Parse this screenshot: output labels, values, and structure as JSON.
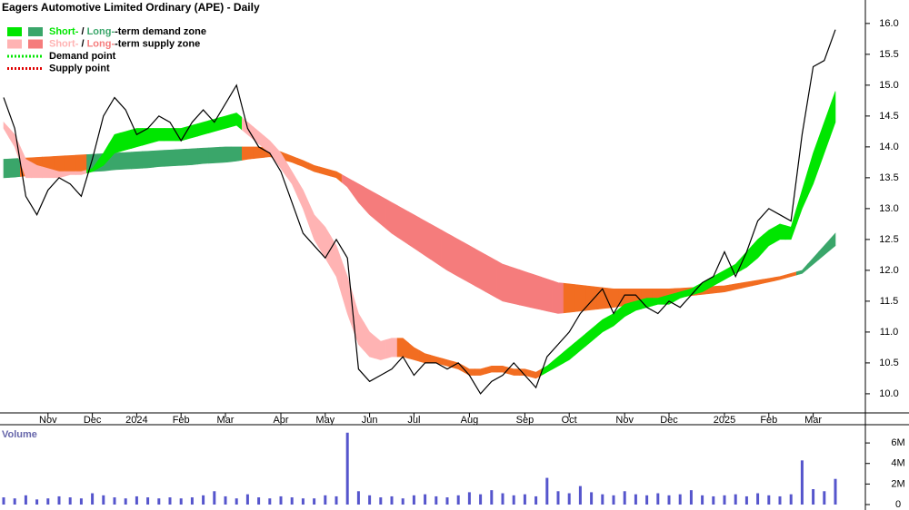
{
  "chart_data": [
    {
      "type": "line",
      "title": "Eagers Automotive Limited Ordinary (APE) - Daily",
      "legend": [
        {
          "swatches": [
            "#00e600",
            "#3aa66a"
          ],
          "parts": [
            "Short-",
            " / ",
            "Long-",
            "-term demand zone"
          ],
          "part_colors": [
            "#00e600",
            "#000000",
            "#3aa66a",
            "#000000"
          ]
        },
        {
          "swatches": [
            "#ffb3b3",
            "#f57c7c"
          ],
          "parts": [
            "Short-",
            " / ",
            "Long-",
            "-term supply zone"
          ],
          "part_colors": [
            "#ffb3b3",
            "#000000",
            "#f57c7c",
            "#000000"
          ]
        },
        {
          "line": "#00e600",
          "parts": [
            "Demand point"
          ],
          "part_colors": [
            "#000000"
          ]
        },
        {
          "line": "#e00000",
          "parts": [
            "Supply point"
          ],
          "part_colors": [
            "#000000"
          ]
        }
      ],
      "categories": [
        null,
        null,
        null,
        null,
        "Nov",
        null,
        null,
        null,
        "Dec",
        null,
        null,
        null,
        "2024",
        null,
        null,
        null,
        "Feb",
        null,
        null,
        null,
        "Mar",
        null,
        null,
        null,
        null,
        "Apr",
        null,
        null,
        null,
        "May",
        null,
        null,
        null,
        "Jun",
        null,
        null,
        null,
        "Jul",
        null,
        null,
        null,
        null,
        "Aug",
        null,
        null,
        null,
        null,
        "Sep",
        null,
        null,
        null,
        "Oct",
        null,
        null,
        null,
        null,
        "Nov",
        null,
        null,
        null,
        "Dec",
        null,
        null,
        null,
        null,
        "2025",
        null,
        null,
        null,
        "Feb",
        null,
        null,
        null,
        "Mar",
        null,
        null
      ],
      "values": [
        14.8,
        14.3,
        13.2,
        12.9,
        13.3,
        13.5,
        13.4,
        13.2,
        13.8,
        14.5,
        14.8,
        14.6,
        14.2,
        14.3,
        14.5,
        14.4,
        14.1,
        14.4,
        14.6,
        14.4,
        14.7,
        15.0,
        14.3,
        14.0,
        13.9,
        13.6,
        13.1,
        12.6,
        12.4,
        12.2,
        12.5,
        12.2,
        10.4,
        10.2,
        10.3,
        10.4,
        10.6,
        10.3,
        10.5,
        10.5,
        10.4,
        10.5,
        10.3,
        10.0,
        10.2,
        10.3,
        10.5,
        10.3,
        10.1,
        10.6,
        10.8,
        11.0,
        11.3,
        11.5,
        11.7,
        11.3,
        11.6,
        11.6,
        11.4,
        11.3,
        11.5,
        11.4,
        11.6,
        11.8,
        11.9,
        12.3,
        11.9,
        12.3,
        12.8,
        13.0,
        12.9,
        12.8,
        14.2,
        15.3,
        15.4,
        15.9
      ],
      "color": "#000000",
      "short_term_zone": {
        "upper": [
          14.4,
          14.2,
          13.8,
          13.7,
          13.65,
          13.6,
          13.6,
          13.6,
          13.65,
          13.9,
          14.2,
          14.25,
          14.3,
          14.3,
          14.3,
          14.3,
          14.3,
          14.35,
          14.4,
          14.45,
          14.5,
          14.55,
          14.4,
          14.25,
          14.1,
          13.9,
          13.6,
          13.3,
          12.9,
          12.7,
          12.4,
          11.9,
          11.3,
          11.0,
          10.85,
          10.9,
          10.9,
          10.75,
          10.65,
          10.6,
          10.55,
          10.5,
          10.4,
          10.4,
          10.45,
          10.45,
          10.4,
          10.4,
          10.35,
          10.45,
          10.6,
          10.75,
          10.9,
          11.05,
          11.2,
          11.3,
          11.45,
          11.5,
          11.55,
          11.55,
          11.6,
          11.65,
          11.7,
          11.8,
          11.9,
          12.0,
          12.1,
          12.3,
          12.5,
          12.65,
          12.75,
          12.7,
          13.3,
          13.9,
          14.4,
          14.9
        ],
        "lower": [
          14.3,
          14.0,
          13.5,
          13.5,
          13.5,
          13.5,
          13.55,
          13.55,
          13.6,
          13.7,
          13.9,
          13.95,
          14.0,
          14.05,
          14.1,
          14.1,
          14.1,
          14.15,
          14.2,
          14.25,
          14.3,
          14.35,
          14.2,
          14.05,
          13.9,
          13.65,
          13.4,
          13.0,
          12.5,
          12.2,
          11.9,
          11.3,
          10.8,
          10.6,
          10.55,
          10.6,
          10.6,
          10.55,
          10.5,
          10.5,
          10.45,
          10.4,
          10.3,
          10.3,
          10.35,
          10.35,
          10.3,
          10.3,
          10.25,
          10.35,
          10.45,
          10.55,
          10.7,
          10.85,
          11.0,
          11.1,
          11.25,
          11.35,
          11.4,
          11.45,
          11.45,
          11.55,
          11.6,
          11.65,
          11.75,
          11.85,
          11.95,
          12.05,
          12.2,
          12.4,
          12.5,
          12.5,
          13.0,
          13.4,
          13.9,
          14.4
        ],
        "colors": [
          "#ffb3b3",
          "#ffb3b3",
          "#ffb3b3",
          "#ffb3b3",
          "#ffb3b3",
          "#ffb3b3",
          "#ffb3b3",
          "#ffb3b3",
          "#00e600",
          "#00e600",
          "#00e600",
          "#00e600",
          "#00e600",
          "#00e600",
          "#00e600",
          "#00e600",
          "#00e600",
          "#00e600",
          "#00e600",
          "#00e600",
          "#00e600",
          "#00e600",
          "#ffb3b3",
          "#ffb3b3",
          "#ffb3b3",
          "#ffb3b3",
          "#ffb3b3",
          "#ffb3b3",
          "#ffb3b3",
          "#ffb3b3",
          "#ffb3b3",
          "#ffb3b3",
          "#ffb3b3",
          "#ffb3b3",
          "#ffb3b3",
          "#ffb3b3",
          "#f26d21",
          "#f26d21",
          "#f26d21",
          "#f26d21",
          "#f26d21",
          "#f26d21",
          "#f26d21",
          "#f26d21",
          "#f26d21",
          "#f26d21",
          "#f26d21",
          "#f26d21",
          "#f26d21",
          "#00e600",
          "#00e600",
          "#00e600",
          "#00e600",
          "#00e600",
          "#00e600",
          "#00e600",
          "#00e600",
          "#00e600",
          "#00e600",
          "#00e600",
          "#00e600",
          "#00e600",
          "#00e600",
          "#00e600",
          "#00e600",
          "#00e600",
          "#00e600",
          "#00e600",
          "#00e600",
          "#00e600",
          "#00e600",
          "#00e600",
          "#00e600",
          "#00e600",
          "#00e600",
          "#00e600"
        ]
      },
      "long_term_zone": {
        "upper": [
          13.8,
          13.81,
          13.82,
          13.83,
          13.84,
          13.85,
          13.86,
          13.87,
          13.88,
          13.89,
          13.9,
          13.91,
          13.92,
          13.93,
          13.94,
          13.95,
          13.96,
          13.97,
          13.98,
          13.99,
          14.0,
          14.0,
          14.0,
          14.0,
          13.98,
          13.92,
          13.85,
          13.78,
          13.7,
          13.65,
          13.6,
          13.5,
          13.4,
          13.3,
          13.2,
          13.1,
          13.0,
          12.9,
          12.8,
          12.7,
          12.6,
          12.5,
          12.4,
          12.3,
          12.2,
          12.1,
          12.04,
          11.98,
          11.92,
          11.86,
          11.8,
          11.78,
          11.76,
          11.74,
          11.72,
          11.7,
          11.7,
          11.7,
          11.7,
          11.7,
          11.7,
          11.71,
          11.72,
          11.73,
          11.74,
          11.75,
          11.78,
          11.81,
          11.84,
          11.87,
          11.9,
          11.95,
          12.0,
          12.2,
          12.4,
          12.6
        ],
        "lower": [
          13.5,
          13.51,
          13.53,
          13.54,
          13.55,
          13.56,
          13.58,
          13.59,
          13.6,
          13.61,
          13.63,
          13.64,
          13.65,
          13.66,
          13.68,
          13.69,
          13.7,
          13.71,
          13.73,
          13.74,
          13.75,
          13.77,
          13.8,
          13.82,
          13.84,
          13.8,
          13.75,
          13.68,
          13.6,
          13.55,
          13.5,
          13.35,
          13.1,
          12.9,
          12.75,
          12.6,
          12.48,
          12.36,
          12.24,
          12.12,
          12.0,
          11.9,
          11.8,
          11.7,
          11.6,
          11.5,
          11.46,
          11.42,
          11.38,
          11.34,
          11.3,
          11.32,
          11.34,
          11.36,
          11.38,
          11.4,
          11.43,
          11.46,
          11.49,
          11.52,
          11.55,
          11.57,
          11.59,
          11.61,
          11.63,
          11.65,
          11.69,
          11.73,
          11.77,
          11.81,
          11.85,
          11.9,
          11.95,
          12.1,
          12.25,
          12.4
        ],
        "colors": [
          "#3aa66a",
          "#3aa66a",
          "#f26d21",
          "#f26d21",
          "#f26d21",
          "#f26d21",
          "#f26d21",
          "#f26d21",
          "#3aa66a",
          "#3aa66a",
          "#3aa66a",
          "#3aa66a",
          "#3aa66a",
          "#3aa66a",
          "#3aa66a",
          "#3aa66a",
          "#3aa66a",
          "#3aa66a",
          "#3aa66a",
          "#3aa66a",
          "#3aa66a",
          "#3aa66a",
          "#f26d21",
          "#f26d21",
          "#f26d21",
          "#f26d21",
          "#f26d21",
          "#f26d21",
          "#f26d21",
          "#f26d21",
          "#f26d21",
          "#f57c7c",
          "#f57c7c",
          "#f57c7c",
          "#f57c7c",
          "#f57c7c",
          "#f57c7c",
          "#f57c7c",
          "#f57c7c",
          "#f57c7c",
          "#f57c7c",
          "#f57c7c",
          "#f57c7c",
          "#f57c7c",
          "#f57c7c",
          "#f57c7c",
          "#f57c7c",
          "#f57c7c",
          "#f57c7c",
          "#f57c7c",
          "#f57c7c",
          "#f26d21",
          "#f26d21",
          "#f26d21",
          "#f26d21",
          "#f26d21",
          "#f26d21",
          "#f26d21",
          "#f26d21",
          "#f26d21",
          "#f26d21",
          "#f26d21",
          "#f26d21",
          "#f26d21",
          "#f26d21",
          "#f26d21",
          "#f26d21",
          "#f26d21",
          "#f26d21",
          "#f26d21",
          "#f26d21",
          "#f26d21",
          "#3aa66a",
          "#3aa66a",
          "#3aa66a",
          "#3aa66a"
        ]
      },
      "ylim": [
        9.69,
        16.38
      ],
      "yticks": [
        {
          "value": 10,
          "label": "10.0"
        },
        10.5,
        {
          "value": 11,
          "label": "11.0"
        },
        11.5,
        {
          "value": 12,
          "label": "12.0"
        },
        12.5,
        {
          "value": 13,
          "label": "13.0"
        },
        13.5,
        {
          "value": 14,
          "label": "14.0"
        },
        14.5,
        {
          "value": 15,
          "label": "15.0"
        },
        15.5,
        {
          "value": 16,
          "label": "16.0"
        }
      ]
    },
    {
      "type": "bar",
      "title": "Volume",
      "color": "#5555cc",
      "values": [
        700000,
        600000,
        900000,
        500000,
        600000,
        800000,
        700000,
        600000,
        1100000,
        900000,
        700000,
        600000,
        800000,
        700000,
        600000,
        700000,
        600000,
        700000,
        900000,
        1300000,
        800000,
        600000,
        1000000,
        700000,
        600000,
        800000,
        700000,
        600000,
        600000,
        900000,
        800000,
        7000000,
        1300000,
        900000,
        700000,
        800000,
        600000,
        900000,
        1000000,
        800000,
        700000,
        900000,
        1200000,
        1000000,
        1400000,
        1100000,
        900000,
        1000000,
        800000,
        2600000,
        1300000,
        1100000,
        1800000,
        1200000,
        1000000,
        900000,
        1300000,
        1000000,
        900000,
        1100000,
        900000,
        1000000,
        1400000,
        900000,
        800000,
        900000,
        1000000,
        800000,
        1100000,
        900000,
        800000,
        1000000,
        4300000,
        1500000,
        1300000,
        2500000
      ],
      "ylim": [
        0,
        7600000
      ],
      "yticks": [
        0,
        {
          "value": 2000000,
          "label": "2M"
        },
        {
          "value": 4000000,
          "label": "4M"
        },
        {
          "value": 6000000,
          "label": "6M"
        }
      ]
    }
  ]
}
